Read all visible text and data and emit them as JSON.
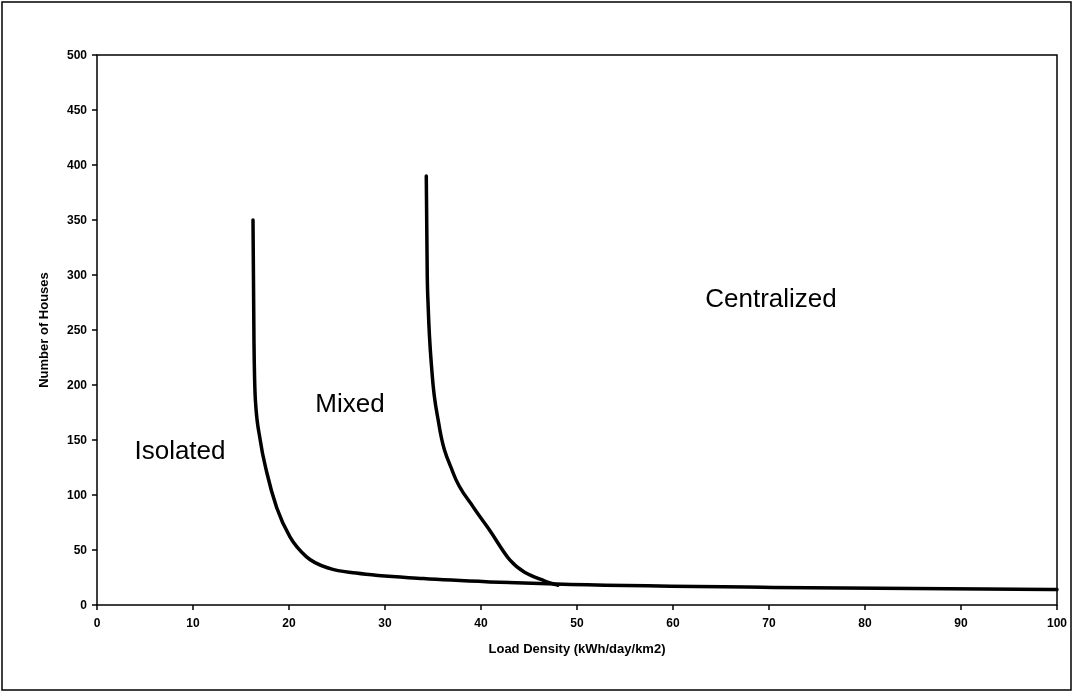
{
  "chart_data": {
    "type": "line",
    "xlabel": "Load Density (kWh/day/km2)",
    "ylabel": "Number of Houses",
    "xlim": [
      0,
      100
    ],
    "ylim": [
      0,
      500
    ],
    "xticks": [
      0,
      10,
      20,
      30,
      40,
      50,
      60,
      70,
      80,
      90,
      100
    ],
    "yticks": [
      0,
      50,
      100,
      150,
      200,
      250,
      300,
      350,
      400,
      450,
      500
    ],
    "grid": false,
    "marker": "none",
    "line_style": "solid",
    "series": [
      {
        "color": "#000000",
        "x": [
          16.25,
          16.35,
          16.5,
          17.0,
          17.7,
          18.7,
          20.1,
          21.8,
          24.3,
          27,
          34,
          40.9,
          47.8,
          70.5,
          100
        ],
        "values": [
          350,
          241,
          186,
          150,
          120,
          89,
          62,
          44,
          33,
          29,
          24,
          21,
          19,
          16,
          14
        ]
      },
      {
        "color": "#000000",
        "x": [
          34.3,
          34.4,
          34.5,
          34.9,
          35.6,
          37.1,
          39.2,
          40.9,
          43,
          46.6,
          48
        ],
        "values": [
          390,
          300,
          271,
          211,
          165,
          120,
          89,
          68,
          41,
          22,
          18
        ]
      }
    ],
    "annotations": [
      "Isolated",
      "Mixed",
      "Centralized"
    ]
  }
}
